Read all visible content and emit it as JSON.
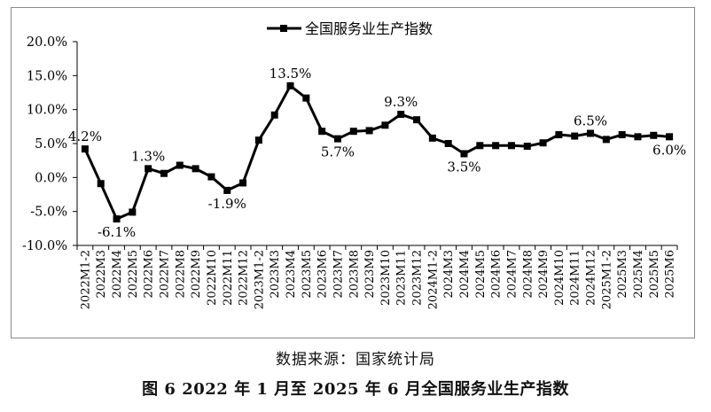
{
  "source_note": "数据来源：国家统计局",
  "figure_caption": "图 6  2022 年 1 月至 2025 年 6 月全国服务业生产指数",
  "chart_data": {
    "type": "line",
    "legend": "全国服务业生产指数",
    "legend_position": "top-center",
    "grid": false,
    "line_color": "#000000",
    "marker": "square",
    "ylim": [
      -10,
      20
    ],
    "ytick_labels": [
      "20.0%",
      "15.0%",
      "10.0%",
      "5.0%",
      "0.0%",
      "-5.0%",
      "-10.0%"
    ],
    "categories": [
      "2022M1-2",
      "2022M3",
      "2022M4",
      "2022M5",
      "2022M6",
      "2022M7",
      "2022M8",
      "2022M9",
      "2022M10",
      "2022M11",
      "2022M12",
      "2023M1-2",
      "2023M3",
      "2023M4",
      "2023M5",
      "2023M6",
      "2023M7",
      "2023M8",
      "2023M9",
      "2023M10",
      "2023M11",
      "2023M12",
      "2024M1-2",
      "2024M3",
      "2024M4",
      "2024M5",
      "2024M6",
      "2024M7",
      "2024M8",
      "2024M9",
      "2024M10",
      "2024M11",
      "2024M12",
      "2025M1-2",
      "2025M3",
      "2025M4",
      "2025M5",
      "2025M6"
    ],
    "series": [
      {
        "name": "全国服务业生产指数",
        "values": [
          4.2,
          -0.9,
          -6.1,
          -5.1,
          1.3,
          0.6,
          1.8,
          1.3,
          0.1,
          -1.9,
          -0.8,
          5.5,
          9.2,
          13.5,
          11.7,
          6.8,
          5.7,
          6.8,
          6.9,
          7.7,
          9.3,
          8.5,
          5.8,
          5.0,
          3.5,
          4.7,
          4.7,
          4.7,
          4.6,
          5.1,
          6.3,
          6.1,
          6.5,
          5.6,
          6.3,
          6.0,
          6.2,
          6.0
        ]
      }
    ],
    "data_labels": [
      {
        "index": 0,
        "text": "4.2%",
        "pos": "above"
      },
      {
        "index": 2,
        "text": "-6.1%",
        "pos": "below"
      },
      {
        "index": 4,
        "text": "1.3%",
        "pos": "above"
      },
      {
        "index": 9,
        "text": "-1.9%",
        "pos": "below"
      },
      {
        "index": 13,
        "text": "13.5%",
        "pos": "above"
      },
      {
        "index": 16,
        "text": "5.7%",
        "pos": "below"
      },
      {
        "index": 20,
        "text": "9.3%",
        "pos": "above"
      },
      {
        "index": 24,
        "text": "3.5%",
        "pos": "below"
      },
      {
        "index": 32,
        "text": "6.5%",
        "pos": "above"
      },
      {
        "index": 37,
        "text": "6.0%",
        "pos": "below"
      }
    ]
  }
}
